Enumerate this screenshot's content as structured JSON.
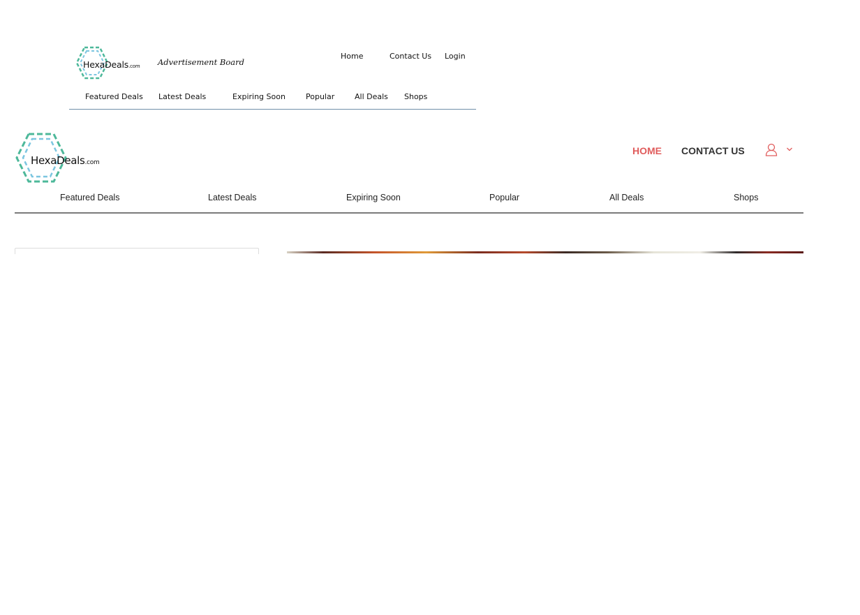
{
  "mockup": {
    "logo": {
      "brand": "HexaDeals",
      "suffix": ".com"
    },
    "tagline": "Advertisement Board",
    "top_nav": [
      "Home",
      "Contact Us",
      "Login"
    ],
    "categories": [
      "Featured Deals",
      "Latest Deals",
      "Expiring Soon",
      "Popular",
      "All Deals",
      "Shops"
    ]
  },
  "site": {
    "logo": {
      "brand": "HexaDeals",
      "suffix": ".com"
    },
    "top_nav": {
      "home": "HOME",
      "contact": "CONTACT US"
    },
    "categories": [
      "Featured Deals",
      "Latest Deals",
      "Expiring Soon",
      "Popular",
      "All Deals",
      "Shops"
    ]
  },
  "icons": {
    "logo": "hexagon-logo-icon",
    "user": "user-icon",
    "dropdown": "chevron-down-icon"
  },
  "colors": {
    "accent": "#e05c5c",
    "logo_teal": "#4db89a",
    "logo_blue": "#7cc6e0",
    "divider": "#6f8fa9"
  }
}
